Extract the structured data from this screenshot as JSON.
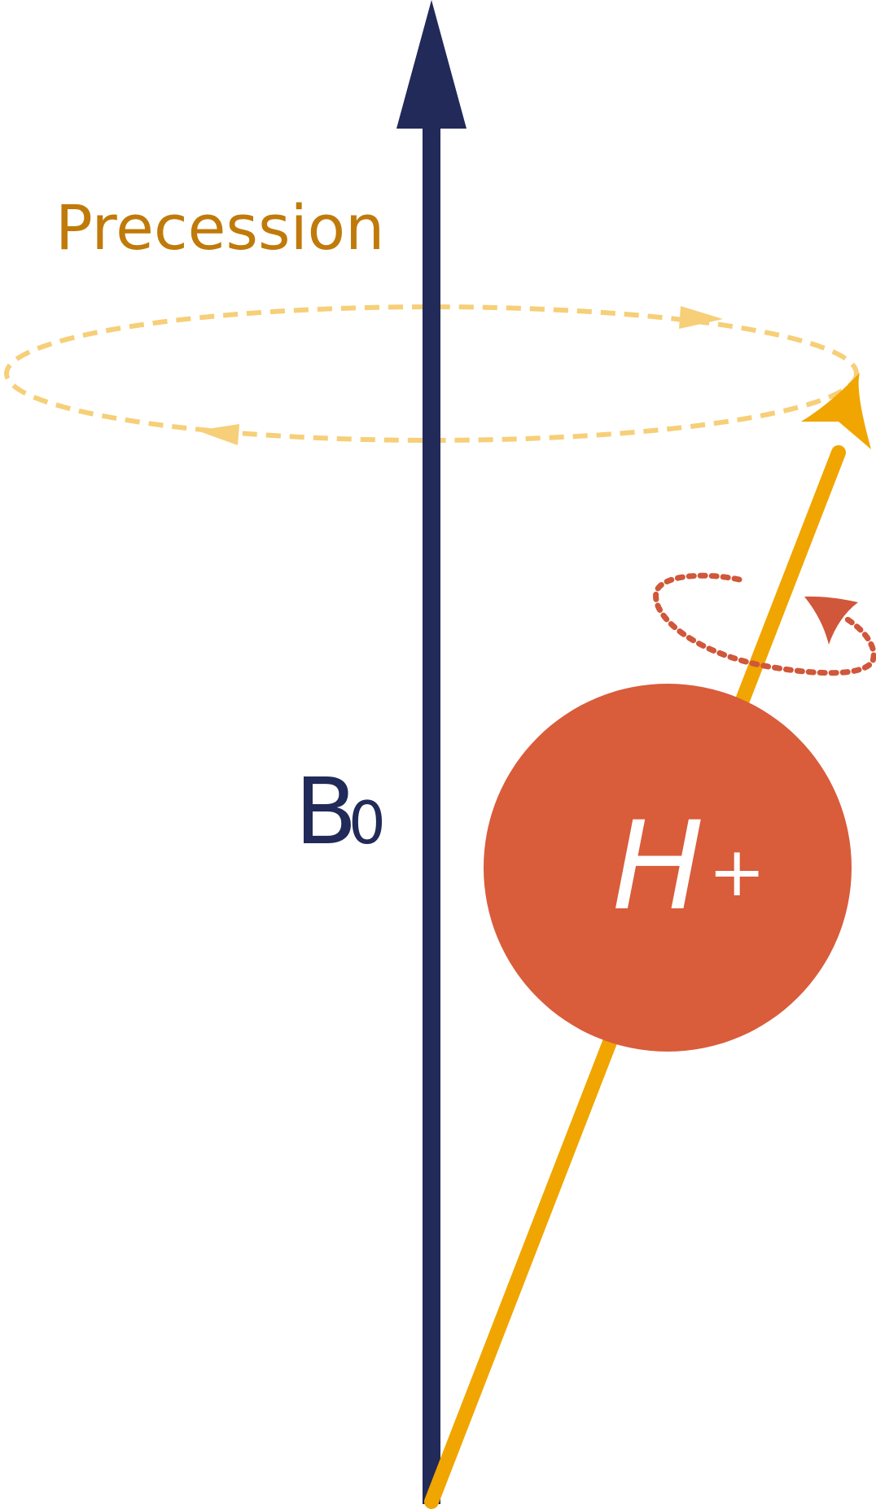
{
  "diagram": {
    "precession_label": "Precession",
    "field_label": {
      "main": "B",
      "subscript": "0"
    },
    "proton_label": {
      "main": "H",
      "superscript": "+"
    }
  },
  "colors": {
    "field_arrow": "#212a58",
    "spin_axis": "#f0a500",
    "precession_text": "#c07a0a",
    "precession_path": "#f6cf78",
    "proton": "#d95c3b",
    "spin_path": "#d0573a",
    "proton_text": "#ffffff"
  }
}
